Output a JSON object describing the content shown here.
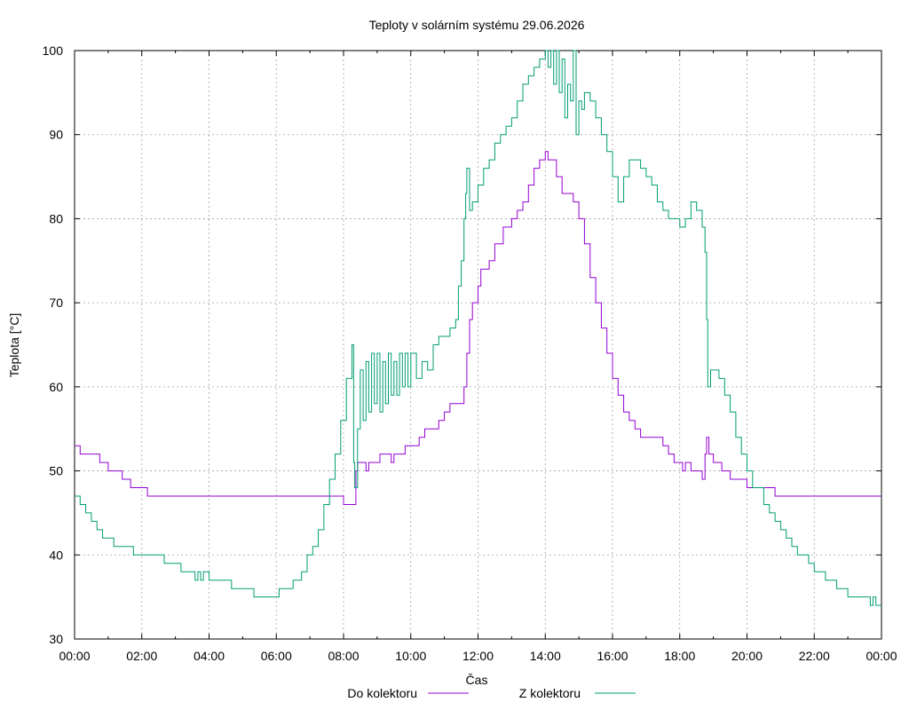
{
  "chart_data": {
    "type": "line",
    "title": "Teploty v solárním systému 29.06.2026",
    "xlabel": "Čas",
    "ylabel": "Teplota [°C]",
    "xlim": [
      "00:00",
      "24:00"
    ],
    "ylim": [
      30,
      100
    ],
    "grid": true,
    "legend_position": "bottom-center",
    "x_ticks": [
      "00:00",
      "02:00",
      "04:00",
      "06:00",
      "08:00",
      "10:00",
      "12:00",
      "14:00",
      "16:00",
      "18:00",
      "20:00",
      "22:00",
      "00:00"
    ],
    "y_ticks": [
      "30",
      "40",
      "50",
      "60",
      "70",
      "80",
      "90",
      "100"
    ],
    "series": [
      {
        "name": "Do kolektoru",
        "color": "#9400d3",
        "points": [
          [
            "00:00",
            53
          ],
          [
            "00:10",
            52
          ],
          [
            "00:30",
            52
          ],
          [
            "00:45",
            51
          ],
          [
            "01:00",
            50
          ],
          [
            "01:15",
            50
          ],
          [
            "01:20",
            50
          ],
          [
            "01:25",
            49
          ],
          [
            "01:35",
            49
          ],
          [
            "01:40",
            48
          ],
          [
            "02:00",
            48
          ],
          [
            "02:10",
            47
          ],
          [
            "03:00",
            47
          ],
          [
            "05:00",
            47
          ],
          [
            "07:00",
            47
          ],
          [
            "07:55",
            47
          ],
          [
            "08:00",
            46
          ],
          [
            "08:20",
            46
          ],
          [
            "08:22",
            50
          ],
          [
            "08:25",
            51
          ],
          [
            "08:35",
            51
          ],
          [
            "08:40",
            50
          ],
          [
            "08:45",
            51
          ],
          [
            "09:00",
            51
          ],
          [
            "09:05",
            52
          ],
          [
            "09:20",
            52
          ],
          [
            "09:25",
            51
          ],
          [
            "09:30",
            52
          ],
          [
            "09:45",
            52
          ],
          [
            "09:50",
            53
          ],
          [
            "10:00",
            53
          ],
          [
            "10:15",
            54
          ],
          [
            "10:25",
            55
          ],
          [
            "10:40",
            55
          ],
          [
            "10:50",
            56
          ],
          [
            "11:00",
            57
          ],
          [
            "11:10",
            58
          ],
          [
            "11:30",
            58
          ],
          [
            "11:35",
            60
          ],
          [
            "11:40",
            64
          ],
          [
            "11:45",
            68
          ],
          [
            "11:50",
            70
          ],
          [
            "12:00",
            72
          ],
          [
            "12:05",
            74
          ],
          [
            "12:20",
            75
          ],
          [
            "12:30",
            77
          ],
          [
            "12:45",
            79
          ],
          [
            "13:00",
            80
          ],
          [
            "13:10",
            81
          ],
          [
            "13:20",
            82
          ],
          [
            "13:30",
            84
          ],
          [
            "13:40",
            86
          ],
          [
            "13:50",
            87
          ],
          [
            "14:00",
            88
          ],
          [
            "14:05",
            87
          ],
          [
            "14:10",
            87
          ],
          [
            "14:20",
            85
          ],
          [
            "14:30",
            83
          ],
          [
            "14:40",
            83
          ],
          [
            "14:50",
            82
          ],
          [
            "15:00",
            80
          ],
          [
            "15:10",
            77
          ],
          [
            "15:20",
            73
          ],
          [
            "15:30",
            70
          ],
          [
            "15:40",
            67
          ],
          [
            "15:50",
            64
          ],
          [
            "16:00",
            61
          ],
          [
            "16:10",
            59
          ],
          [
            "16:20",
            57
          ],
          [
            "16:30",
            56
          ],
          [
            "16:40",
            55
          ],
          [
            "16:50",
            54
          ],
          [
            "17:00",
            54
          ],
          [
            "17:20",
            54
          ],
          [
            "17:30",
            53
          ],
          [
            "17:40",
            52
          ],
          [
            "17:50",
            51
          ],
          [
            "18:00",
            51
          ],
          [
            "18:05",
            50
          ],
          [
            "18:10",
            51
          ],
          [
            "18:20",
            50
          ],
          [
            "18:40",
            49
          ],
          [
            "18:45",
            52
          ],
          [
            "18:48",
            54
          ],
          [
            "18:52",
            52
          ],
          [
            "19:00",
            51
          ],
          [
            "19:15",
            50
          ],
          [
            "19:20",
            50
          ],
          [
            "19:30",
            49
          ],
          [
            "19:50",
            49
          ],
          [
            "20:00",
            48
          ],
          [
            "20:30",
            48
          ],
          [
            "20:50",
            47
          ],
          [
            "22:00",
            47
          ],
          [
            "23:00",
            47
          ],
          [
            "24:00",
            47
          ]
        ]
      },
      {
        "name": "Z kolektoru",
        "color": "#009e73",
        "points": [
          [
            "00:00",
            47
          ],
          [
            "00:10",
            46
          ],
          [
            "00:20",
            45
          ],
          [
            "00:30",
            44
          ],
          [
            "00:40",
            43
          ],
          [
            "00:50",
            42
          ],
          [
            "01:00",
            42
          ],
          [
            "01:10",
            41
          ],
          [
            "01:40",
            41
          ],
          [
            "01:45",
            40
          ],
          [
            "02:00",
            40
          ],
          [
            "02:30",
            40
          ],
          [
            "02:40",
            39
          ],
          [
            "03:00",
            39
          ],
          [
            "03:10",
            38
          ],
          [
            "03:30",
            38
          ],
          [
            "03:35",
            37
          ],
          [
            "03:40",
            38
          ],
          [
            "03:45",
            37
          ],
          [
            "03:50",
            38
          ],
          [
            "04:00",
            37
          ],
          [
            "04:30",
            37
          ],
          [
            "04:40",
            36
          ],
          [
            "05:00",
            36
          ],
          [
            "05:20",
            35
          ],
          [
            "05:30",
            35
          ],
          [
            "06:00",
            35
          ],
          [
            "06:05",
            36
          ],
          [
            "06:30",
            37
          ],
          [
            "06:45",
            38
          ],
          [
            "06:55",
            40
          ],
          [
            "07:05",
            41
          ],
          [
            "07:15",
            43
          ],
          [
            "07:25",
            46
          ],
          [
            "07:35",
            49
          ],
          [
            "07:45",
            52
          ],
          [
            "07:55",
            56
          ],
          [
            "08:05",
            61
          ],
          [
            "08:15",
            65
          ],
          [
            "08:18",
            51
          ],
          [
            "08:20",
            48
          ],
          [
            "08:25",
            55
          ],
          [
            "08:30",
            62
          ],
          [
            "08:35",
            56
          ],
          [
            "08:40",
            63
          ],
          [
            "08:45",
            57
          ],
          [
            "08:50",
            64
          ],
          [
            "08:55",
            58
          ],
          [
            "09:00",
            64
          ],
          [
            "09:05",
            57
          ],
          [
            "09:10",
            63
          ],
          [
            "09:15",
            58
          ],
          [
            "09:20",
            64
          ],
          [
            "09:25",
            59
          ],
          [
            "09:30",
            63
          ],
          [
            "09:35",
            59
          ],
          [
            "09:40",
            64
          ],
          [
            "09:45",
            60
          ],
          [
            "09:50",
            64
          ],
          [
            "09:55",
            60
          ],
          [
            "10:00",
            64
          ],
          [
            "10:10",
            61
          ],
          [
            "10:20",
            63
          ],
          [
            "10:30",
            62
          ],
          [
            "10:40",
            65
          ],
          [
            "10:50",
            66
          ],
          [
            "11:00",
            66
          ],
          [
            "11:10",
            67
          ],
          [
            "11:20",
            68
          ],
          [
            "11:25",
            72
          ],
          [
            "11:30",
            75
          ],
          [
            "11:35",
            80
          ],
          [
            "11:38",
            83
          ],
          [
            "11:40",
            86
          ],
          [
            "11:45",
            81
          ],
          [
            "11:50",
            82
          ],
          [
            "12:00",
            84
          ],
          [
            "12:10",
            86
          ],
          [
            "12:20",
            87
          ],
          [
            "12:30",
            89
          ],
          [
            "12:40",
            90
          ],
          [
            "12:50",
            91
          ],
          [
            "13:00",
            92
          ],
          [
            "13:10",
            94
          ],
          [
            "13:20",
            96
          ],
          [
            "13:30",
            97
          ],
          [
            "13:40",
            98
          ],
          [
            "13:50",
            99
          ],
          [
            "14:00",
            100
          ],
          [
            "14:05",
            98
          ],
          [
            "14:10",
            100
          ],
          [
            "14:15",
            96
          ],
          [
            "14:20",
            100
          ],
          [
            "14:25",
            95
          ],
          [
            "14:30",
            99
          ],
          [
            "14:35",
            92
          ],
          [
            "14:40",
            96
          ],
          [
            "14:45",
            94
          ],
          [
            "14:50",
            100
          ],
          [
            "14:55",
            90
          ],
          [
            "15:00",
            94
          ],
          [
            "15:05",
            93
          ],
          [
            "15:10",
            95
          ],
          [
            "15:20",
            94
          ],
          [
            "15:30",
            92
          ],
          [
            "15:40",
            90
          ],
          [
            "15:50",
            88
          ],
          [
            "16:00",
            85
          ],
          [
            "16:10",
            82
          ],
          [
            "16:20",
            85
          ],
          [
            "16:30",
            87
          ],
          [
            "16:40",
            87
          ],
          [
            "16:50",
            86
          ],
          [
            "17:00",
            85
          ],
          [
            "17:10",
            84
          ],
          [
            "17:20",
            82
          ],
          [
            "17:30",
            81
          ],
          [
            "17:40",
            80
          ],
          [
            "18:00",
            79
          ],
          [
            "18:10",
            80
          ],
          [
            "18:20",
            82
          ],
          [
            "18:30",
            81
          ],
          [
            "18:40",
            79
          ],
          [
            "18:45",
            76
          ],
          [
            "18:48",
            68
          ],
          [
            "18:50",
            60
          ],
          [
            "18:55",
            62
          ],
          [
            "19:00",
            62
          ],
          [
            "19:10",
            61
          ],
          [
            "19:20",
            59
          ],
          [
            "19:30",
            57
          ],
          [
            "19:40",
            54
          ],
          [
            "19:50",
            52
          ],
          [
            "20:00",
            50
          ],
          [
            "20:10",
            48
          ],
          [
            "20:20",
            48
          ],
          [
            "20:30",
            46
          ],
          [
            "20:40",
            45
          ],
          [
            "20:50",
            44
          ],
          [
            "21:00",
            43
          ],
          [
            "21:10",
            42
          ],
          [
            "21:20",
            41
          ],
          [
            "21:30",
            40
          ],
          [
            "21:40",
            40
          ],
          [
            "21:50",
            39
          ],
          [
            "22:00",
            38
          ],
          [
            "22:10",
            38
          ],
          [
            "22:20",
            37
          ],
          [
            "22:30",
            37
          ],
          [
            "22:40",
            36
          ],
          [
            "22:50",
            36
          ],
          [
            "23:00",
            35
          ],
          [
            "23:30",
            35
          ],
          [
            "23:40",
            34
          ],
          [
            "23:45",
            35
          ],
          [
            "23:50",
            34
          ],
          [
            "24:00",
            34
          ]
        ]
      }
    ]
  }
}
